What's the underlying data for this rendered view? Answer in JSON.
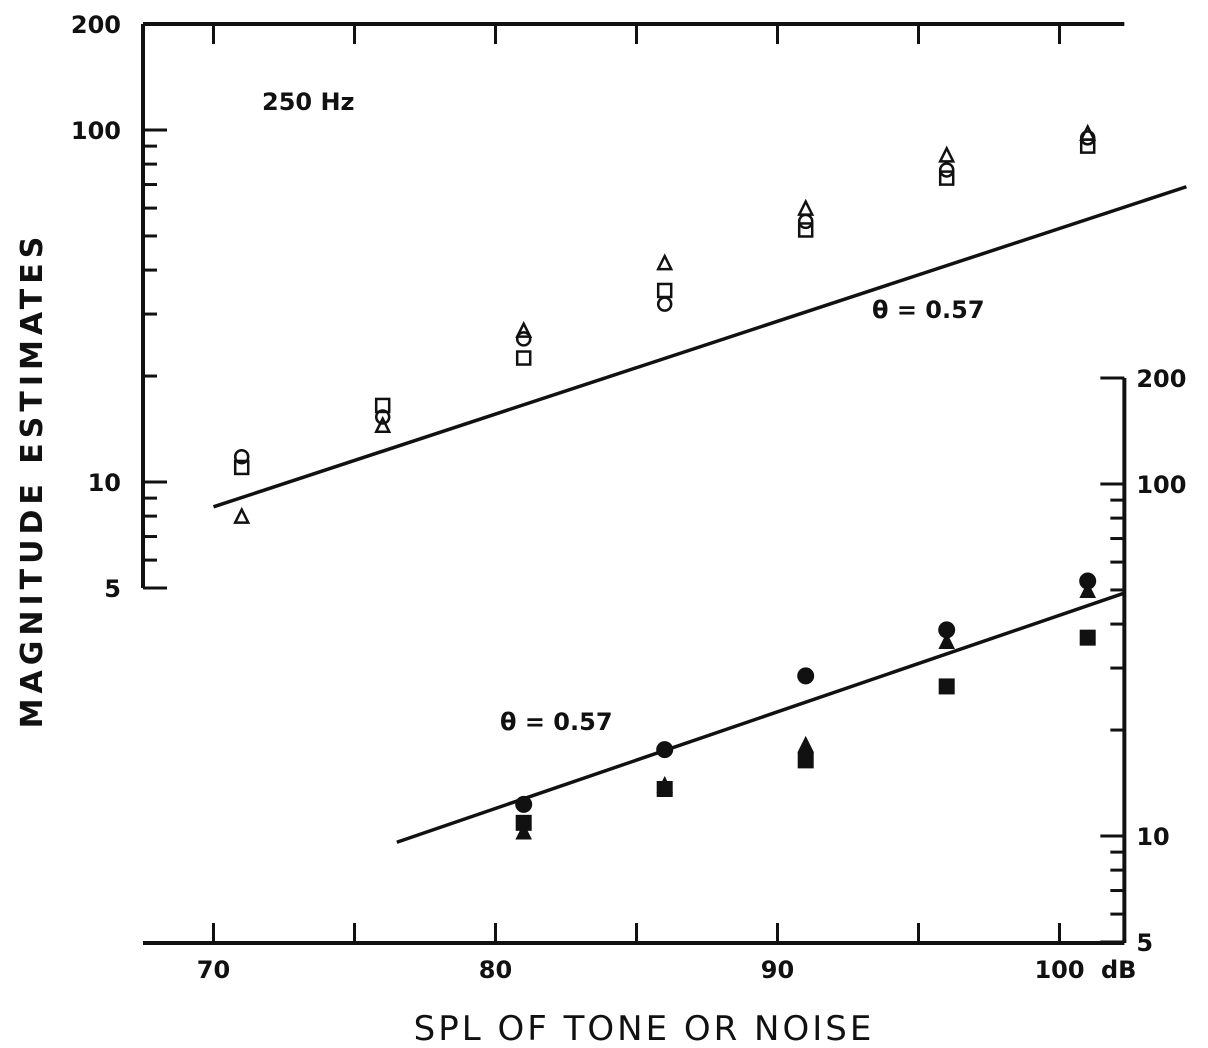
{
  "chart_data": {
    "type": "scatter",
    "annotation": "250 Hz",
    "xlabel": "SPL OF TONE OR NOISE",
    "ylabel": "MAGNITUDE ESTIMATES",
    "x_unit_label": "dB",
    "x_ticks": [
      70,
      80,
      90,
      100
    ],
    "xlim": [
      67.5,
      102.3
    ],
    "x_scale": "linear",
    "y_scale": "log",
    "grid": false,
    "panels": [
      {
        "name": "upper",
        "y_axis_side": "left",
        "ylim": [
          5,
          200
        ],
        "y_tick_labels": [
          5,
          10,
          100,
          200
        ],
        "marker_style": "open",
        "series": [
          {
            "marker": "circle",
            "x": [
              71,
              76,
              81,
              86,
              91,
              96,
              101
            ],
            "y": [
              11.8,
              15.3,
              25.5,
              32,
              55,
              77,
              95
            ]
          },
          {
            "marker": "square",
            "x": [
              71,
              76,
              81,
              86,
              91,
              96,
              101
            ],
            "y": [
              11,
              16.5,
              22.5,
              35,
              52,
              73,
              90
            ]
          },
          {
            "marker": "triangle",
            "x": [
              71,
              76,
              81,
              86,
              91,
              96,
              101
            ],
            "y": [
              8,
              14.5,
              27,
              42,
              60,
              85,
              98
            ]
          }
        ],
        "fit_line": {
          "x": [
            70,
            104.5
          ],
          "y": [
            8.5,
            69
          ],
          "label": "θ = 0.57"
        }
      },
      {
        "name": "lower",
        "y_axis_side": "right",
        "ylim": [
          5,
          200
        ],
        "y_tick_labels": [
          5,
          10,
          100,
          200
        ],
        "marker_style": "filled",
        "series": [
          {
            "marker": "circle",
            "x": [
              81,
              86,
              91,
              96,
              101
            ],
            "y": [
              12.3,
              17.6,
              28.5,
              38.5,
              53
            ]
          },
          {
            "marker": "square",
            "x": [
              81,
              86,
              91,
              96,
              101
            ],
            "y": [
              10.9,
              13.6,
              16.4,
              26.6,
              36.6
            ]
          },
          {
            "marker": "triangle",
            "x": [
              81,
              86,
              91,
              96,
              101
            ],
            "y": [
              10.3,
              14,
              18.2,
              35.8,
              50
            ]
          }
        ],
        "fit_line": {
          "x": [
            76.5,
            102.3
          ],
          "y": [
            9.6,
            49
          ],
          "label": "θ = 0.57"
        }
      }
    ]
  }
}
